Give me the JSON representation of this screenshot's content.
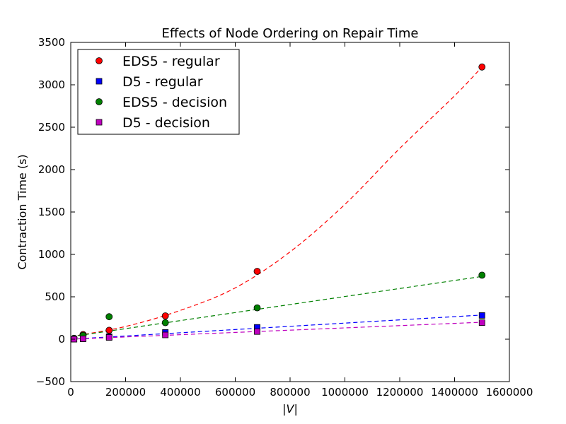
{
  "chart_data": {
    "type": "scatter",
    "title": "Effects of Node Ordering on Repair Time",
    "xlabel": "|V|",
    "ylabel": "Contraction Time (s)",
    "xlim": [
      0,
      1600000
    ],
    "ylim": [
      -500,
      3500
    ],
    "xticks": [
      "0",
      "200000",
      "400000",
      "600000",
      "800000",
      "1000000",
      "1200000",
      "1400000",
      "1600000"
    ],
    "yticks": [
      "−500",
      "0",
      "500",
      "1000",
      "1500",
      "2000",
      "2500",
      "3000",
      "3500"
    ],
    "grid": false,
    "legend_position": "top-left",
    "series": [
      {
        "name": "EDS5 - regular",
        "marker": "circle",
        "color": "#ff0000",
        "x": [
          12000,
          45000,
          140000,
          345000,
          680000,
          1500000
        ],
        "y": [
          10,
          55,
          105,
          275,
          800,
          3210
        ],
        "fit": "quadratic",
        "fit_points": [
          [
            0,
            30
          ],
          [
            200000,
            150
          ],
          [
            400000,
            340
          ],
          [
            600000,
            605
          ],
          [
            800000,
            1030
          ],
          [
            1000000,
            1590
          ],
          [
            1200000,
            2250
          ],
          [
            1400000,
            2870
          ],
          [
            1500000,
            3210
          ]
        ]
      },
      {
        "name": "D5 - regular",
        "marker": "square",
        "color": "#0000ff",
        "x": [
          12000,
          45000,
          140000,
          345000,
          680000,
          1500000
        ],
        "y": [
          0,
          5,
          30,
          80,
          140,
          280
        ],
        "fit": "linear",
        "fit_points": [
          [
            0,
            0
          ],
          [
            1500000,
            285
          ]
        ]
      },
      {
        "name": "EDS5 - decision",
        "marker": "circle",
        "color": "#008000",
        "x": [
          12000,
          45000,
          140000,
          345000,
          680000,
          1500000
        ],
        "y": [
          10,
          45,
          265,
          195,
          370,
          755
        ],
        "fit": "linear",
        "fit_points": [
          [
            0,
            30
          ],
          [
            1500000,
            740
          ]
        ]
      },
      {
        "name": "D5 - decision",
        "marker": "square",
        "color": "#bf00bf",
        "x": [
          12000,
          45000,
          140000,
          345000,
          680000,
          1500000
        ],
        "y": [
          0,
          5,
          20,
          50,
          90,
          195
        ],
        "fit": "linear",
        "fit_points": [
          [
            0,
            0
          ],
          [
            1500000,
            200
          ]
        ]
      }
    ]
  }
}
